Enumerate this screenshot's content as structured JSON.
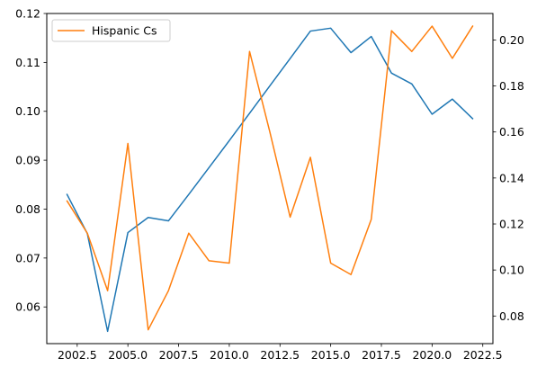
{
  "chart_data": {
    "type": "line",
    "x": [
      2002,
      2003,
      2004,
      2005,
      2006,
      2007,
      2008,
      2009,
      2010,
      2011,
      2012,
      2013,
      2014,
      2015,
      2016,
      2017,
      2018,
      2019,
      2020,
      2021,
      2022
    ],
    "xlim": [
      2001.0,
      2023.0
    ],
    "x_ticks": [
      2002.5,
      2005.0,
      2007.5,
      2010.0,
      2012.5,
      2015.0,
      2017.5,
      2020.0,
      2022.5
    ],
    "x_tick_labels": [
      "2002.5",
      "2005.0",
      "2007.5",
      "2010.0",
      "2012.5",
      "2015.0",
      "2017.5",
      "2020.0",
      "2022.5"
    ],
    "left_axis": {
      "ylim": [
        0.0525,
        0.12
      ],
      "ticks": [
        0.06,
        0.07,
        0.08,
        0.09,
        0.1,
        0.11,
        0.12
      ],
      "tick_labels": [
        "0.06",
        "0.07",
        "0.08",
        "0.09",
        "0.10",
        "0.11",
        "0.12"
      ]
    },
    "right_axis": {
      "ylim": [
        0.068,
        0.2115
      ],
      "ticks": [
        0.08,
        0.1,
        0.12,
        0.14,
        0.16,
        0.18,
        0.2
      ],
      "tick_labels": [
        "0.08",
        "0.10",
        "0.12",
        "0.14",
        "0.16",
        "0.18",
        "0.20"
      ]
    },
    "series": [
      {
        "axis": "left",
        "color": "#1f77b4",
        "values": [
          0.083,
          0.075,
          0.055,
          0.0752,
          0.0783,
          0.0776,
          0.083,
          0.0885,
          0.094,
          0.0996,
          0.1052,
          0.1108,
          0.1164,
          0.117,
          0.112,
          0.1153,
          0.1078,
          0.1056,
          0.0994,
          0.1025,
          0.0985
        ]
      },
      {
        "axis": "right",
        "name": "Hispanic Cs",
        "color": "#ff7f0e",
        "values": [
          0.13,
          0.116,
          0.091,
          0.155,
          0.074,
          0.091,
          0.116,
          0.104,
          0.103,
          0.195,
          0.16,
          0.123,
          0.149,
          0.103,
          0.098,
          0.122,
          0.204,
          0.195,
          0.206,
          0.192,
          0.206
        ]
      }
    ],
    "legend": {
      "placement": "upper-left",
      "entries": [
        "Hispanic Cs"
      ]
    },
    "grid": false
  }
}
